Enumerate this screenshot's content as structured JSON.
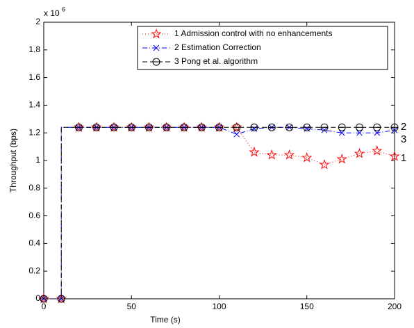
{
  "chart_data": {
    "type": "line",
    "xlabel": "Time (s)",
    "ylabel": "Throughput (bps)",
    "y_multiplier": {
      "base": "x 10",
      "exponent": "6"
    },
    "x": [
      0,
      10,
      10,
      20,
      30,
      40,
      50,
      60,
      70,
      80,
      90,
      100,
      110,
      120,
      130,
      140,
      150,
      160,
      170,
      180,
      190,
      200
    ],
    "series": [
      {
        "name": "1 Admission control with no enhancements",
        "color": "#ff0000",
        "marker": "star",
        "dash": "dotted",
        "values": [
          0,
          0,
          1.24,
          1.24,
          1.24,
          1.24,
          1.24,
          1.24,
          1.24,
          1.24,
          1.24,
          1.24,
          1.24,
          1.06,
          1.04,
          1.04,
          1.02,
          0.97,
          1.01,
          1.05,
          1.07,
          1.03
        ]
      },
      {
        "name": "2 Estimation Correction",
        "color": "#0000ff",
        "marker": "x",
        "dash": "dashdot",
        "values": [
          0,
          0,
          1.24,
          1.24,
          1.24,
          1.24,
          1.24,
          1.24,
          1.24,
          1.24,
          1.24,
          1.24,
          1.19,
          1.23,
          1.24,
          1.24,
          1.23,
          1.22,
          1.2,
          1.2,
          1.2,
          1.22
        ]
      },
      {
        "name": "3 Pong et al. algorithm",
        "color": "#000000",
        "marker": "circle-minus",
        "dash": "dashed",
        "values": [
          0,
          0,
          1.24,
          1.24,
          1.24,
          1.24,
          1.24,
          1.24,
          1.24,
          1.24,
          1.24,
          1.24,
          1.24,
          1.24,
          1.24,
          1.24,
          1.24,
          1.24,
          1.24,
          1.24,
          1.24,
          1.24
        ]
      }
    ],
    "annotations": [
      "2",
      "3",
      "1"
    ],
    "xlim": [
      0,
      200
    ],
    "xticks": [
      0,
      50,
      100,
      150,
      200
    ],
    "ylim": [
      0,
      2
    ],
    "yticks": [
      0,
      0.2,
      0.4,
      0.6,
      0.8,
      1,
      1.2,
      1.4,
      1.6,
      1.8,
      2
    ],
    "grid": false,
    "legend": "top-right"
  }
}
